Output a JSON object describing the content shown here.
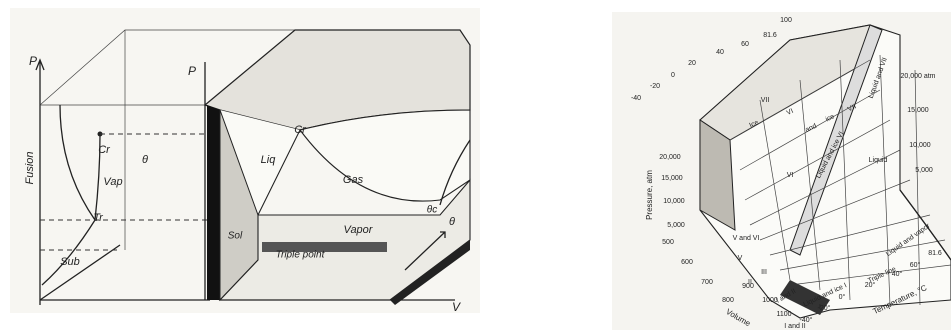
{
  "left_diagram": {
    "labels": [
      "P",
      "Fusion",
      "Vap",
      "Cr",
      "θ",
      "Tr",
      "Sub",
      "P",
      "Liq",
      "Cr",
      "Gas",
      "Sol",
      "Vapor",
      "θc",
      "Triple point",
      "θ",
      "V"
    ]
  },
  "right_diagram": {
    "temperature_ticks_top": [
      "100",
      "81.6",
      "60",
      "40",
      "20",
      "0",
      "-20",
      "-40"
    ],
    "pressure_ticks_right": [
      "20,000 atm",
      "15,000",
      "10,000",
      "5,000"
    ],
    "pressure_ticks_left": [
      "20,000",
      "15,000",
      "10,000",
      "5,000"
    ],
    "pressure_label": "Pressure, atm",
    "volume_ticks": [
      "500",
      "600",
      "700",
      "800",
      "900",
      "1000",
      "1100"
    ],
    "volume_label": "Volume",
    "temperature_ticks_bottom": [
      "81.6",
      "60°",
      "40°",
      "20°",
      "0°",
      "-20°",
      "-40°"
    ],
    "temperature_label": "Temperature, °C",
    "region_labels": [
      "VII",
      "Ice",
      "VI",
      "and",
      "ice",
      "VII",
      "Liquid and VII",
      "VI",
      "Liquid and ice VI",
      "Liquid",
      "V and VI",
      "V",
      "III",
      "II",
      "I and II",
      "Liquid and ice I",
      "Triple line",
      "Liquid and vapor",
      "I",
      "I and II"
    ]
  }
}
